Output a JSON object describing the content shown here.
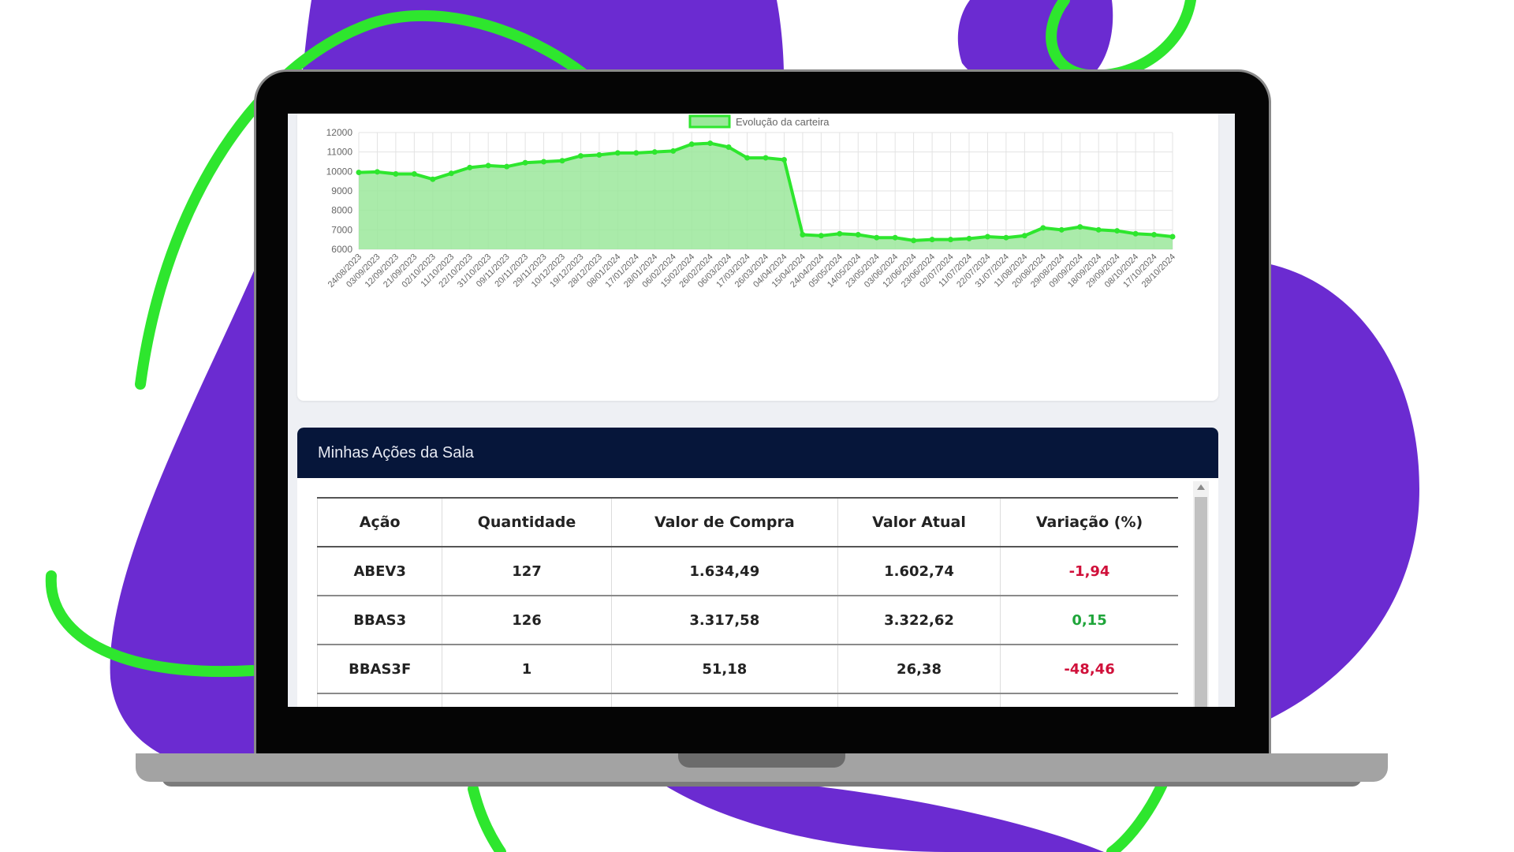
{
  "colors": {
    "background_blob": "#6b2bd1",
    "accent_green": "#2ee62e",
    "table_header_bg": "#06163a",
    "negative": "#d0103a",
    "positive": "#1fa53a"
  },
  "chart_data": {
    "type": "area",
    "legend": [
      "Evolução da carteira"
    ],
    "legend_position": "top-center",
    "grid": true,
    "ylim": [
      6000,
      12000
    ],
    "yticks": [
      "12000",
      "11000",
      "10000",
      "9000",
      "8000",
      "7000",
      "6000"
    ],
    "x": [
      "24/08/2023",
      "03/09/2023",
      "12/09/2023",
      "21/09/2023",
      "02/10/2023",
      "11/10/2023",
      "22/10/2023",
      "31/10/2023",
      "09/11/2023",
      "20/11/2023",
      "29/11/2023",
      "10/12/2023",
      "19/12/2023",
      "28/12/2023",
      "08/01/2024",
      "17/01/2024",
      "28/01/2024",
      "06/02/2024",
      "15/02/2024",
      "26/02/2024",
      "06/03/2024",
      "17/03/2024",
      "26/03/2024",
      "04/04/2024",
      "15/04/2024",
      "24/04/2024",
      "05/05/2024",
      "14/05/2024",
      "23/05/2024",
      "03/06/2024",
      "12/06/2024",
      "23/06/2024",
      "02/07/2024",
      "11/07/2024",
      "22/07/2024",
      "31/07/2024",
      "11/08/2024",
      "20/08/2024",
      "29/08/2024",
      "09/09/2024",
      "18/09/2024",
      "29/09/2024",
      "08/10/2024",
      "17/10/2024",
      "28/10/2024"
    ],
    "series": [
      {
        "name": "Evolução da carteira",
        "values": [
          9950,
          9980,
          9870,
          9870,
          9600,
          9900,
          10200,
          10300,
          10250,
          10450,
          10500,
          10550,
          10800,
          10850,
          10950,
          10950,
          11000,
          11050,
          11400,
          11450,
          11250,
          10700,
          10700,
          10600,
          6750,
          6700,
          6800,
          6750,
          6600,
          6600,
          6450,
          6500,
          6500,
          6550,
          6650,
          6600,
          6700,
          7100,
          7000,
          7150,
          7000,
          6950,
          6800,
          6750,
          6650
        ]
      }
    ]
  },
  "table": {
    "title": "Minhas Ações da Sala",
    "columns": [
      "Ação",
      "Quantidade",
      "Valor de Compra",
      "Valor Atual",
      "Variação (%)"
    ],
    "rows": [
      {
        "acao": "ABEV3",
        "quantidade": "127",
        "compra": "1.634,49",
        "atual": "1.602,74",
        "variacao": "-1,94",
        "sign": "neg"
      },
      {
        "acao": "BBAS3",
        "quantidade": "126",
        "compra": "3.317,58",
        "atual": "3.322,62",
        "variacao": "0,15",
        "sign": "pos"
      },
      {
        "acao": "BBAS3F",
        "quantidade": "1",
        "compra": "51,18",
        "atual": "26,38",
        "variacao": "-48,46",
        "sign": "neg"
      }
    ]
  }
}
